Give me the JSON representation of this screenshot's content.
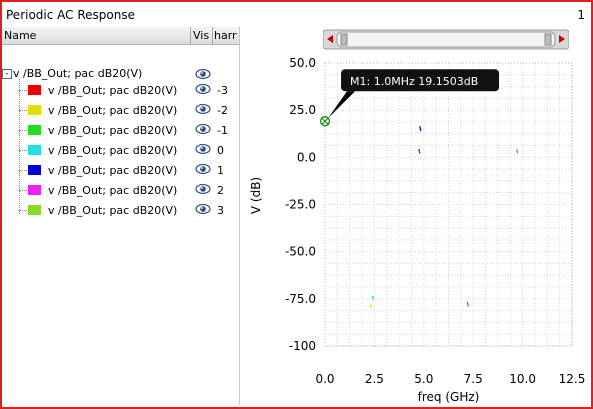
{
  "window": {
    "title": "Periodic AC Response",
    "number": "1"
  },
  "browser": {
    "columns": [
      "Name",
      "Vis",
      "harr"
    ],
    "root_label": "v /BB_Out; pac dB20(V)",
    "root_expander": "-",
    "items": [
      {
        "label": "v /BB_Out; pac dB20(V)",
        "harmonic": "-3",
        "color": "#ee0000"
      },
      {
        "label": "v /BB_Out; pac dB20(V)",
        "harmonic": "-2",
        "color": "#e0e000"
      },
      {
        "label": "v /BB_Out; pac dB20(V)",
        "harmonic": "-1",
        "color": "#22dd22"
      },
      {
        "label": "v /BB_Out; pac dB20(V)",
        "harmonic": "0",
        "color": "#22e0e0"
      },
      {
        "label": "v /BB_Out; pac dB20(V)",
        "harmonic": "1",
        "color": "#0000dd"
      },
      {
        "label": "v /BB_Out; pac dB20(V)",
        "harmonic": "2",
        "color": "#ee22ee"
      },
      {
        "label": "v /BB_Out; pac dB20(V)",
        "harmonic": "3",
        "color": "#88dd22"
      }
    ],
    "visibility_icon": "eye-icon"
  },
  "marker": {
    "label": "M1: 1.0MHz 19.1503dB",
    "x": 0.001,
    "y": 19.1503
  },
  "chart_data": {
    "type": "scatter",
    "xlabel": "freq (GHz)",
    "ylabel": "V (dB)",
    "xlim": [
      0,
      12.5
    ],
    "ylim": [
      -100,
      50
    ],
    "xticks": [
      "0.0",
      "2.5",
      "5.0",
      "7.5",
      "10.0",
      "12.5"
    ],
    "yticks": [
      "50.0",
      "25.0",
      "0.0",
      "-25.0",
      "-50.0",
      "-75.0",
      "-100"
    ],
    "grid": true,
    "series": [
      {
        "name": "-3",
        "color": "#ee0000",
        "points": [
          [
            4.75,
            4.5
          ],
          [
            4.8,
            2.0
          ]
        ]
      },
      {
        "name": "-1",
        "color": "#22dd22",
        "points": [
          [
            9.7,
            4.5
          ],
          [
            9.75,
            2.0
          ]
        ]
      },
      {
        "name": "1",
        "color": "#0000dd",
        "points": [
          [
            4.8,
            16.5
          ],
          [
            4.85,
            14.0
          ]
        ]
      },
      {
        "name": "2",
        "color": "#ee22ee",
        "points": [
          [
            7.2,
            -76.5
          ],
          [
            7.25,
            -79.0
          ]
        ]
      },
      {
        "name": "0",
        "color": "#22e0e0",
        "points": [
          [
            2.4,
            -73.5
          ],
          [
            2.45,
            -75.5
          ]
        ]
      },
      {
        "name": "-2",
        "color": "#e0e000",
        "points": [
          [
            2.3,
            -78.0
          ],
          [
            2.35,
            -80.0
          ]
        ]
      }
    ]
  }
}
